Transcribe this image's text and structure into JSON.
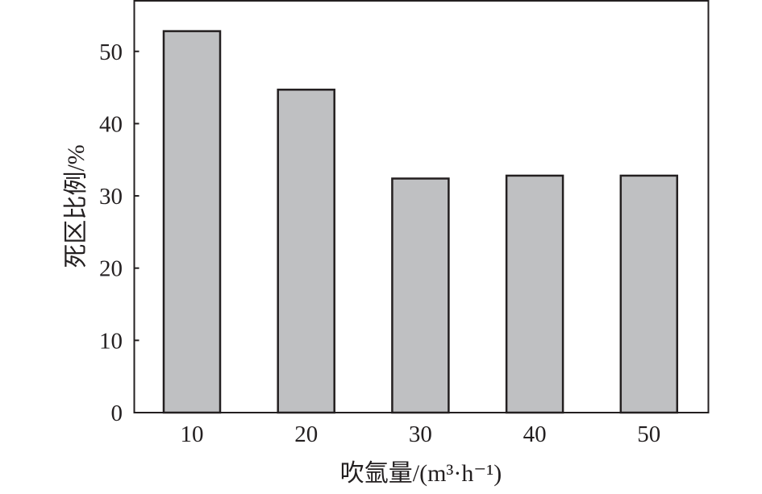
{
  "chart_data": {
    "type": "bar",
    "categories": [
      "10",
      "20",
      "30",
      "40",
      "50"
    ],
    "values": [
      52.8,
      44.7,
      32.4,
      32.8,
      32.8
    ],
    "title": "",
    "xlabel": "吹氩量/(m³·h⁻¹)",
    "ylabel": "死区比例/%",
    "ylim": [
      0,
      57
    ],
    "yticks": [
      "0",
      "10",
      "20",
      "30",
      "40",
      "50"
    ],
    "grid": false,
    "bar_color": "#bfc0c2",
    "edge_color": "#231f20"
  }
}
